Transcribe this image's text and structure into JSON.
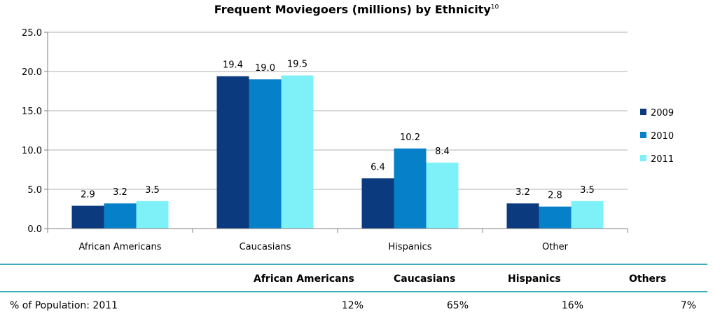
{
  "chart_data": {
    "type": "bar",
    "title": "Frequent Moviegoers (millions) by Ethnicity",
    "title_footnote": "10",
    "categories": [
      "African Americans",
      "Caucasians",
      "Hispanics",
      "Other"
    ],
    "series": [
      {
        "name": "2009",
        "values": [
          2.9,
          19.4,
          6.4,
          3.2
        ],
        "color": "#0b3a7e"
      },
      {
        "name": "2010",
        "values": [
          3.2,
          19.0,
          10.2,
          2.8
        ],
        "color": "#0680c8"
      },
      {
        "name": "2011",
        "values": [
          3.5,
          19.5,
          8.4,
          3.5
        ],
        "color": "#7ef0f8"
      }
    ],
    "ylim": [
      0,
      25
    ],
    "yticks": [
      "0.0",
      "5.0",
      "10.0",
      "15.0",
      "20.0",
      "25.0"
    ],
    "grid": true,
    "legend": "right"
  },
  "population_table": {
    "headers": [
      "African Americans",
      "Caucasians",
      "Hispanics",
      "Others"
    ],
    "row_label": "% of Population: 2011",
    "values": [
      "12%",
      "65%",
      "16%",
      "7%"
    ],
    "rule_color": "#3aaebc"
  }
}
